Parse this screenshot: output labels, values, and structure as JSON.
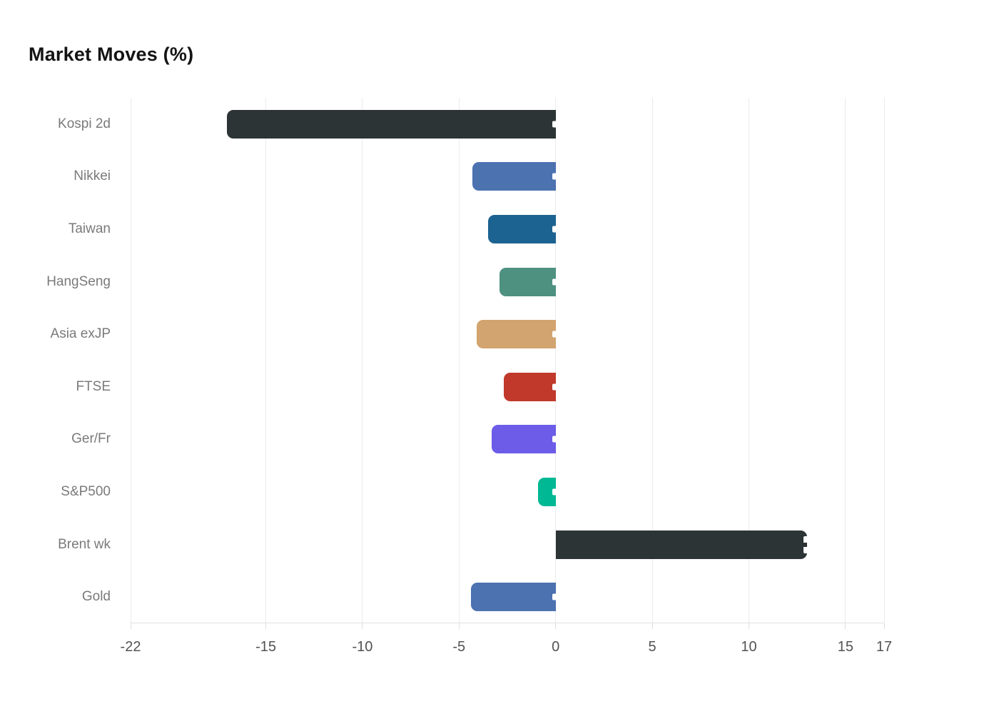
{
  "header": {
    "title": "Market Moves (%)"
  },
  "chart_data": {
    "type": "bar",
    "orientation": "horizontal",
    "title": "Market Moves (%)",
    "categories": [
      "Kospi 2d",
      "Nikkei",
      "Taiwan",
      "HangSeng",
      "Asia exJP",
      "FTSE",
      "Ger/Fr",
      "S&P500",
      "Brent wk",
      "Gold"
    ],
    "values": [
      -17.0,
      -4.3,
      -3.5,
      -2.9,
      -4.1,
      -2.7,
      -3.3,
      -0.9,
      13.0,
      -4.4
    ],
    "bar_colors": [
      "#2d3436",
      "#4c72b0",
      "#1d6391",
      "#4e9180",
      "#d2a46f",
      "#c0392b",
      "#6c5ce7",
      "#00b894",
      "#2d3436",
      "#4c72b0"
    ],
    "xlabel": "",
    "ylabel": "",
    "xlim": [
      -22,
      17
    ],
    "xticks": [
      -22,
      -15,
      -10,
      -5,
      0,
      5,
      10,
      15,
      17
    ],
    "grid": "vertical-gridlines-on",
    "legend": "none",
    "colors": {
      "background": "#ffffff",
      "gridline": "#ebebeb",
      "axis_line": "#e2e2e2",
      "x_tick_label": "#525252",
      "category_label": "#7a7a7a",
      "title": "#141414",
      "bar_end_marker": "#ffffff"
    }
  }
}
